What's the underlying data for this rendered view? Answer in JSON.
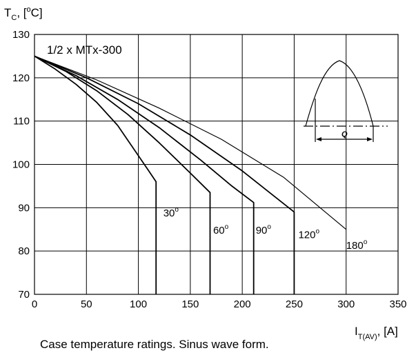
{
  "chart_data": {
    "type": "line",
    "title": "1/2 x MTx-300",
    "ylabel": {
      "main": "T",
      "sub": "C",
      "rest": ", [",
      "sup": "o",
      "end": "C]"
    },
    "xlabel": {
      "main": "I",
      "sub": "T(AV)",
      "rest": ", [A]"
    },
    "caption": "Case temperature ratings. Sinus wave form.",
    "xlim": [
      0,
      350
    ],
    "ylim": [
      70,
      130
    ],
    "xticks": [
      0,
      50,
      100,
      150,
      200,
      250,
      300,
      350
    ],
    "yticks": [
      70,
      80,
      90,
      100,
      110,
      120,
      130
    ],
    "grid": true,
    "series": [
      {
        "name": "30",
        "label_at": [
          124,
          88
        ],
        "points": [
          [
            0,
            125
          ],
          [
            20,
            122
          ],
          [
            40,
            118.5
          ],
          [
            60,
            114.3
          ],
          [
            80,
            109
          ],
          [
            100,
            102
          ],
          [
            110,
            98.5
          ],
          [
            117,
            96
          ],
          [
            117,
            70
          ]
        ]
      },
      {
        "name": "60",
        "label_at": [
          172,
          84
        ],
        "points": [
          [
            0,
            125
          ],
          [
            30,
            121.5
          ],
          [
            60,
            117
          ],
          [
            90,
            111.5
          ],
          [
            120,
            105
          ],
          [
            150,
            98
          ],
          [
            169,
            93.5
          ],
          [
            169,
            70
          ]
        ]
      },
      {
        "name": "90",
        "label_at": [
          213,
          84
        ],
        "points": [
          [
            0,
            125
          ],
          [
            40,
            120.5
          ],
          [
            80,
            115
          ],
          [
            120,
            108.5
          ],
          [
            160,
            101
          ],
          [
            190,
            95
          ],
          [
            211,
            91.2
          ],
          [
            211,
            70
          ]
        ]
      },
      {
        "name": "120",
        "label_at": [
          254,
          83
        ],
        "points": [
          [
            0,
            125
          ],
          [
            50,
            120
          ],
          [
            100,
            114
          ],
          [
            150,
            106.8
          ],
          [
            200,
            98.5
          ],
          [
            250,
            89
          ],
          [
            250,
            70
          ]
        ]
      },
      {
        "name": "180",
        "label_at": [
          300,
          80.5
        ],
        "points": [
          [
            0,
            125
          ],
          [
            60,
            119.5
          ],
          [
            120,
            113
          ],
          [
            180,
            105.8
          ],
          [
            240,
            97
          ],
          [
            300,
            85
          ]
        ]
      }
    ],
    "degree_symbol": "o",
    "inset": {
      "label": "Q"
    }
  }
}
